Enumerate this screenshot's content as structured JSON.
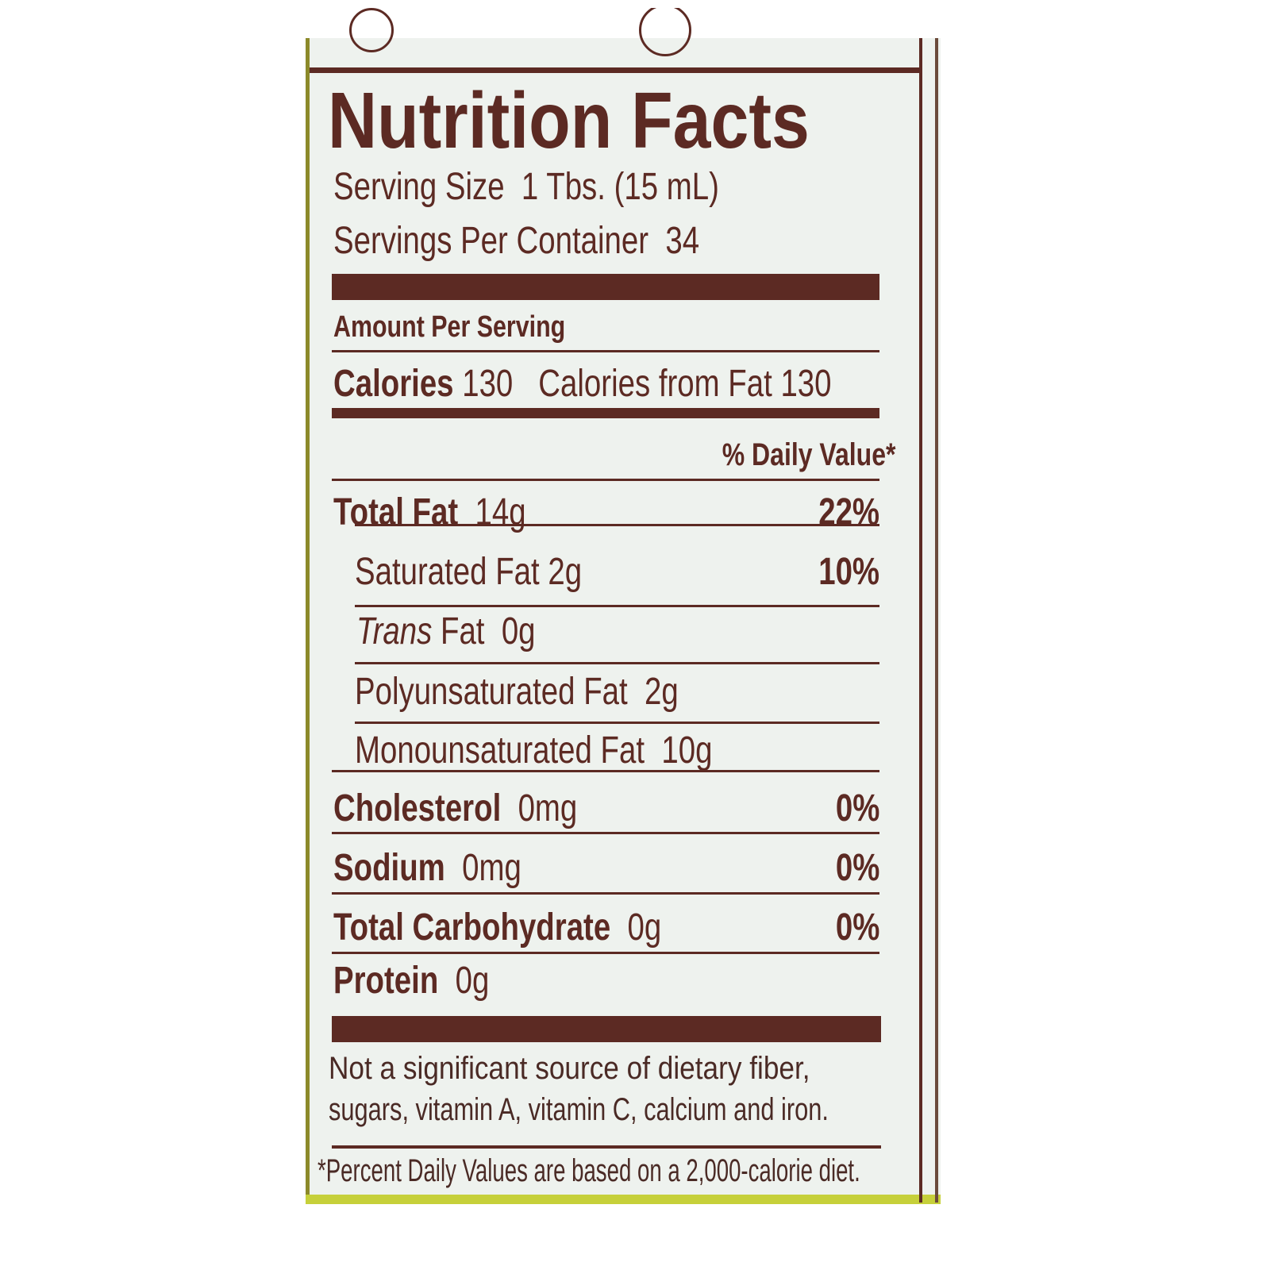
{
  "label": {
    "title": "Nutrition Facts",
    "serving_size_label": "Serving Size",
    "serving_size_value": "1 Tbs. (15 mL)",
    "servings_per_container_label": "Servings Per Container",
    "servings_per_container_value": "34",
    "amount_per_serving": "Amount Per Serving",
    "calories_label": "Calories",
    "calories_value": "130",
    "calories_from_fat_label": "Calories from Fat",
    "calories_from_fat_value": "130",
    "daily_value_header": "% Daily Value*",
    "nutrients": [
      {
        "name": "Total Fat",
        "amount": "14g",
        "dv": "22%"
      },
      {
        "name": "Saturated Fat",
        "amount": "2g",
        "dv": "10%"
      },
      {
        "name": "Trans",
        "name_rest": "Fat",
        "amount": "0g"
      },
      {
        "name": "Polyunsaturated Fat",
        "amount": "2g"
      },
      {
        "name": "Monounsaturated Fat",
        "amount": "10g"
      },
      {
        "name": "Cholesterol",
        "amount": "0mg",
        "dv": "0%"
      },
      {
        "name": "Sodium",
        "amount": "0mg",
        "dv": "0%"
      },
      {
        "name": "Total Carbohydrate",
        "amount": "0g",
        "dv": "0%"
      },
      {
        "name": "Protein",
        "amount": "0g"
      }
    ],
    "footnote_1_line1": "Not a significant source of dietary fiber,",
    "footnote_1_line2": "sugars, vitamin A, vitamin C, calcium and iron.",
    "footnote_2": "*Percent Daily Values are based on a 2,000-calorie diet."
  },
  "colors": {
    "ink": "#5c2a23",
    "label_background": "#eef2ee",
    "container_accent": "#c6d03a"
  }
}
